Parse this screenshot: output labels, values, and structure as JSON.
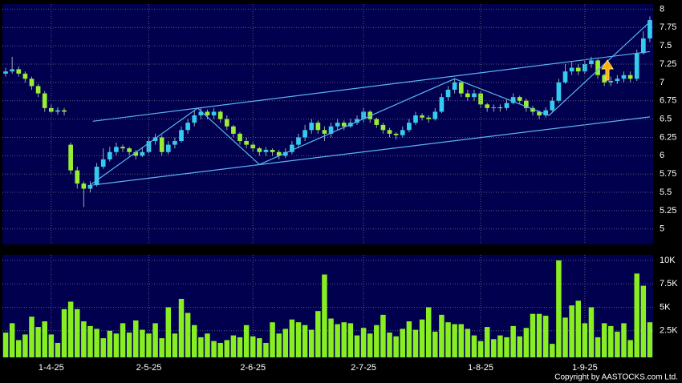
{
  "chart_data": [
    {
      "type": "candlestick",
      "open": [
        7.12,
        7.15,
        7.18,
        7.12,
        7.05,
        6.95,
        6.85,
        6.65,
        6.6,
        6.62,
        6.15,
        5.8,
        5.62,
        5.55,
        5.6,
        5.85,
        5.95,
        6.05,
        6.12,
        6.1,
        6.05,
        6.0,
        6.05,
        6.2,
        6.25,
        6.05,
        6.15,
        6.2,
        6.35,
        6.45,
        6.55,
        6.6,
        6.55,
        6.6,
        6.5,
        6.4,
        6.3,
        6.2,
        6.15,
        6.1,
        6.05,
        6.08,
        6.05,
        6.0,
        6.05,
        6.15,
        6.25,
        6.35,
        6.45,
        6.35,
        6.3,
        6.4,
        6.45,
        6.4,
        6.45,
        6.5,
        6.6,
        6.5,
        6.42,
        6.35,
        6.3,
        6.28,
        6.35,
        6.45,
        6.55,
        6.52,
        6.5,
        6.6,
        6.8,
        6.9,
        7.0,
        6.85,
        6.8,
        6.85,
        6.7,
        6.65,
        6.66,
        6.65,
        6.72,
        6.8,
        6.75,
        6.65,
        6.6,
        6.55,
        6.62,
        6.75,
        7.0,
        7.15,
        7.2,
        7.15,
        7.25,
        7.3,
        7.1,
        7.0,
        7.02,
        7.05,
        7.1,
        7.05,
        7.4,
        7.6
      ],
      "high": [
        7.2,
        7.35,
        7.22,
        7.15,
        7.08,
        6.98,
        6.88,
        6.7,
        6.66,
        6.65,
        6.18,
        5.85,
        5.65,
        5.65,
        5.9,
        6.1,
        6.12,
        6.18,
        6.15,
        6.12,
        6.08,
        6.12,
        6.25,
        6.3,
        6.28,
        6.2,
        6.25,
        6.4,
        6.5,
        6.62,
        6.65,
        6.63,
        6.65,
        6.62,
        6.55,
        6.42,
        6.32,
        6.25,
        6.18,
        6.12,
        6.12,
        6.1,
        6.08,
        6.1,
        6.2,
        6.3,
        6.42,
        6.5,
        6.48,
        6.4,
        6.45,
        6.5,
        6.48,
        6.5,
        6.55,
        6.65,
        6.62,
        6.52,
        6.45,
        6.38,
        6.32,
        6.4,
        6.5,
        6.6,
        6.58,
        6.55,
        6.65,
        6.85,
        6.95,
        7.05,
        7.02,
        6.9,
        6.9,
        6.88,
        6.72,
        6.7,
        6.7,
        6.78,
        6.85,
        6.82,
        6.78,
        6.68,
        6.62,
        6.66,
        6.8,
        7.05,
        7.25,
        7.28,
        7.25,
        7.3,
        7.35,
        7.32,
        7.12,
        7.08,
        7.1,
        7.15,
        7.15,
        7.45,
        7.7,
        7.9
      ],
      "low": [
        7.08,
        7.12,
        7.08,
        7.0,
        6.9,
        6.8,
        6.6,
        6.58,
        6.56,
        6.55,
        5.75,
        5.55,
        5.3,
        5.5,
        5.58,
        5.82,
        5.92,
        6.0,
        6.05,
        6.0,
        5.95,
        5.98,
        6.02,
        6.15,
        6.0,
        6.02,
        6.1,
        6.18,
        6.3,
        6.4,
        6.5,
        6.5,
        6.5,
        6.45,
        6.35,
        6.25,
        6.15,
        6.1,
        6.05,
        6.0,
        6.0,
        6.0,
        5.95,
        5.97,
        6.02,
        6.1,
        6.2,
        6.3,
        6.3,
        6.2,
        6.25,
        6.35,
        6.35,
        6.38,
        6.42,
        6.45,
        6.45,
        6.38,
        6.3,
        6.25,
        6.22,
        6.25,
        6.32,
        6.42,
        6.48,
        6.45,
        6.48,
        6.58,
        6.75,
        6.85,
        6.8,
        6.75,
        6.75,
        6.65,
        6.6,
        6.6,
        6.6,
        6.62,
        6.7,
        6.7,
        6.6,
        6.55,
        6.5,
        6.52,
        6.6,
        6.72,
        6.98,
        7.1,
        7.1,
        7.12,
        7.2,
        7.05,
        6.95,
        6.95,
        6.98,
        7.0,
        7.0,
        7.02,
        7.38,
        7.55
      ],
      "close": [
        7.15,
        7.18,
        7.12,
        7.05,
        6.95,
        6.85,
        6.65,
        6.6,
        6.62,
        6.6,
        5.8,
        5.62,
        5.55,
        5.6,
        5.85,
        5.95,
        6.05,
        6.12,
        6.1,
        6.05,
        6.0,
        6.05,
        6.2,
        6.25,
        6.05,
        6.15,
        6.2,
        6.35,
        6.45,
        6.55,
        6.6,
        6.55,
        6.6,
        6.5,
        6.4,
        6.3,
        6.2,
        6.15,
        6.1,
        6.05,
        6.08,
        6.05,
        6.0,
        6.05,
        6.15,
        6.25,
        6.35,
        6.45,
        6.35,
        6.3,
        6.4,
        6.45,
        6.4,
        6.45,
        6.5,
        6.6,
        6.5,
        6.42,
        6.35,
        6.3,
        6.28,
        6.35,
        6.45,
        6.55,
        6.52,
        6.5,
        6.6,
        6.8,
        6.9,
        7.0,
        6.85,
        6.8,
        6.85,
        6.7,
        6.65,
        6.66,
        6.65,
        6.72,
        6.8,
        6.75,
        6.65,
        6.6,
        6.55,
        6.62,
        6.75,
        7.0,
        7.15,
        7.2,
        7.15,
        7.25,
        7.3,
        7.1,
        7.0,
        7.02,
        7.05,
        7.1,
        7.05,
        7.4,
        7.6,
        7.85
      ],
      "up_color": "#33ccf0",
      "down_color": "#99ee33",
      "ylim": [
        4.79,
        8.07
      ],
      "yticks": [
        5,
        5.25,
        5.5,
        5.75,
        6,
        6.25,
        6.5,
        6.75,
        7,
        7.25,
        7.5,
        7.75,
        8
      ],
      "grid": true,
      "lines": [
        {
          "x": [
            13.4,
            99
          ],
          "y": [
            5.6,
            6.53
          ]
        },
        {
          "x": [
            13.4,
            99
          ],
          "y": [
            6.47,
            7.42
          ]
        },
        {
          "x": [
            13,
            29.5,
            39,
            69,
            83.5,
            99.3
          ],
          "y": [
            5.6,
            6.65,
            5.88,
            7.05,
            6.55,
            7.85
          ]
        }
      ],
      "line_color": "#5ab4f0"
    },
    {
      "type": "bar",
      "categories": [
        null,
        null,
        null,
        null,
        null,
        null,
        null,
        "1-4-25",
        null,
        null,
        null,
        null,
        null,
        null,
        null,
        null,
        null,
        null,
        null,
        null,
        null,
        null,
        "2-5-25",
        null,
        null,
        null,
        null,
        null,
        null,
        null,
        null,
        null,
        null,
        null,
        null,
        null,
        null,
        null,
        "2-6-25",
        null,
        null,
        null,
        null,
        null,
        null,
        null,
        null,
        null,
        null,
        null,
        null,
        null,
        null,
        null,
        null,
        "2-7-25",
        null,
        null,
        null,
        null,
        null,
        null,
        null,
        null,
        null,
        null,
        null,
        null,
        null,
        null,
        null,
        null,
        null,
        "1-8-25",
        null,
        null,
        null,
        null,
        null,
        null,
        null,
        null,
        null,
        null,
        null,
        null,
        null,
        null,
        null,
        "1-9-25",
        null,
        null,
        null,
        null,
        null,
        null,
        null,
        null,
        null,
        null
      ],
      "values": [
        2300,
        3300,
        1500,
        2100,
        4000,
        2900,
        3500,
        2100,
        1200,
        4800,
        5600,
        4800,
        3500,
        3000,
        2700,
        1700,
        2500,
        2200,
        3300,
        2300,
        3600,
        2600,
        2200,
        3300,
        1700,
        5000,
        2200,
        5900,
        4400,
        3100,
        1800,
        2200,
        1400,
        1200,
        1500,
        2000,
        1800,
        3100,
        1900,
        1700,
        1200,
        3400,
        2200,
        2700,
        3700,
        3400,
        3100,
        2600,
        4600,
        8500,
        3800,
        3200,
        3400,
        3300,
        2000,
        2800,
        2200,
        3100,
        4200,
        2300,
        1900,
        2700,
        3500,
        2600,
        3700,
        5000,
        2400,
        4200,
        3400,
        3200,
        3200,
        2700,
        2000,
        1400,
        2900,
        1600,
        2000,
        1800,
        3000,
        1900,
        2800,
        4300,
        4300,
        4100,
        1100,
        10000,
        3900,
        5200,
        5700,
        3300,
        5000,
        1800,
        3300,
        3000,
        2400,
        3300,
        1500,
        8600,
        7300,
        3400
      ],
      "color": "#88ee22",
      "ylim": [
        0,
        10600
      ],
      "yticks": [
        {
          "value": 2500,
          "label": "2.5K"
        },
        {
          "value": 5000,
          "label": "5K"
        },
        {
          "value": 7500,
          "label": "7.5K"
        },
        {
          "value": 10000,
          "label": "10K"
        }
      ],
      "grid": true
    }
  ],
  "footer": "Copyright by AASTOCKS.com Ltd."
}
